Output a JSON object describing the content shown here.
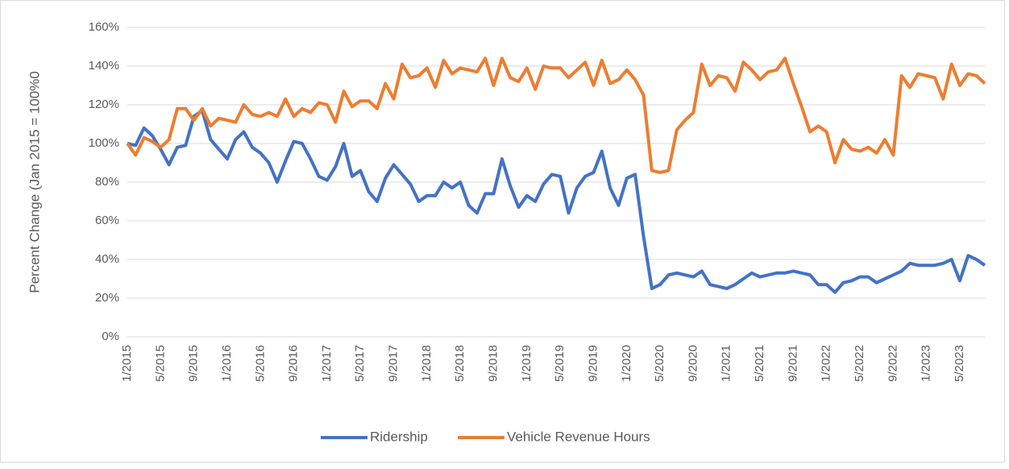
{
  "chart_data": {
    "type": "line",
    "y_label": "Percent Change (Jan 2015 = 100%0",
    "categories": [
      "1/2015",
      null,
      null,
      null,
      "5/2015",
      null,
      null,
      null,
      "9/2015",
      null,
      null,
      null,
      "1/2016",
      null,
      null,
      null,
      "5/2016",
      null,
      null,
      null,
      "9/2016",
      null,
      null,
      null,
      "1/2017",
      null,
      null,
      null,
      "5/2017",
      null,
      null,
      null,
      "9/2017",
      null,
      null,
      null,
      "1/2018",
      null,
      null,
      null,
      "5/2018",
      null,
      null,
      null,
      "9/2018",
      null,
      null,
      null,
      "1/2019",
      null,
      null,
      null,
      "5/2019",
      null,
      null,
      null,
      "9/2019",
      null,
      null,
      null,
      "1/2020",
      null,
      null,
      null,
      "5/2020",
      null,
      null,
      null,
      "9/2020",
      null,
      null,
      null,
      "1/2021",
      null,
      null,
      null,
      "5/2021",
      null,
      null,
      null,
      "9/2021",
      null,
      null,
      null,
      "1/2022",
      null,
      null,
      null,
      "5/2022",
      null,
      null,
      null,
      "9/2022",
      null,
      null,
      null,
      "1/2023",
      null,
      null,
      null,
      "5/2023",
      null,
      null,
      null
    ],
    "series": [
      {
        "name": "Ridership",
        "color": "#4472c4",
        "values": [
          100,
          99,
          108,
          104,
          97,
          89,
          98,
          99,
          114,
          117,
          102,
          97,
          92,
          102,
          106,
          98,
          95,
          90,
          80,
          91,
          101,
          100,
          92,
          83,
          81,
          88,
          100,
          83,
          86,
          75,
          70,
          82,
          89,
          84,
          79,
          70,
          73,
          73,
          80,
          77,
          80,
          68,
          64,
          74,
          74,
          92,
          78,
          67,
          73,
          70,
          79,
          84,
          83,
          64,
          77,
          83,
          85,
          96,
          77,
          68,
          82,
          84,
          52,
          25,
          27,
          32,
          33,
          32,
          31,
          34,
          27,
          26,
          25,
          27,
          30,
          33,
          31,
          32,
          33,
          33,
          34,
          33,
          32,
          27,
          27,
          23,
          28,
          29,
          31,
          31,
          28,
          30,
          32,
          34,
          38,
          37,
          37,
          37,
          38,
          40,
          29,
          42,
          40,
          37
        ]
      },
      {
        "name": "Vehicle Revenue Hours",
        "color": "#ed7d31",
        "values": [
          100,
          94,
          103,
          101,
          98,
          102,
          118,
          118,
          112,
          118,
          109,
          113,
          112,
          111,
          120,
          115,
          114,
          116,
          114,
          123,
          114,
          118,
          116,
          121,
          120,
          111,
          127,
          119,
          122,
          122,
          118,
          131,
          123,
          141,
          134,
          135,
          139,
          129,
          143,
          136,
          139,
          138,
          137,
          144,
          130,
          144,
          134,
          132,
          139,
          128,
          140,
          139,
          139,
          134,
          138,
          142,
          130,
          143,
          131,
          133,
          138,
          133,
          125,
          86,
          85,
          86,
          107,
          112,
          116,
          141,
          130,
          135,
          134,
          127,
          142,
          138,
          133,
          137,
          138,
          144,
          131,
          119,
          106,
          109,
          106,
          90,
          102,
          97,
          96,
          98,
          95,
          102,
          94,
          135,
          129,
          136,
          135,
          134,
          123,
          141,
          130,
          136,
          135,
          131
        ]
      }
    ],
    "ylim": [
      0,
      160
    ],
    "yticks": [
      {
        "value": 0,
        "label": "0%"
      },
      {
        "value": 20,
        "label": "20%"
      },
      {
        "value": 40,
        "label": "40%"
      },
      {
        "value": 60,
        "label": "60%"
      },
      {
        "value": 80,
        "label": "80%"
      },
      {
        "value": 100,
        "label": "100%"
      },
      {
        "value": 120,
        "label": "120%"
      },
      {
        "value": 140,
        "label": "140%"
      },
      {
        "value": 160,
        "label": "160%"
      }
    ],
    "grid": true,
    "legend": "bottom"
  }
}
